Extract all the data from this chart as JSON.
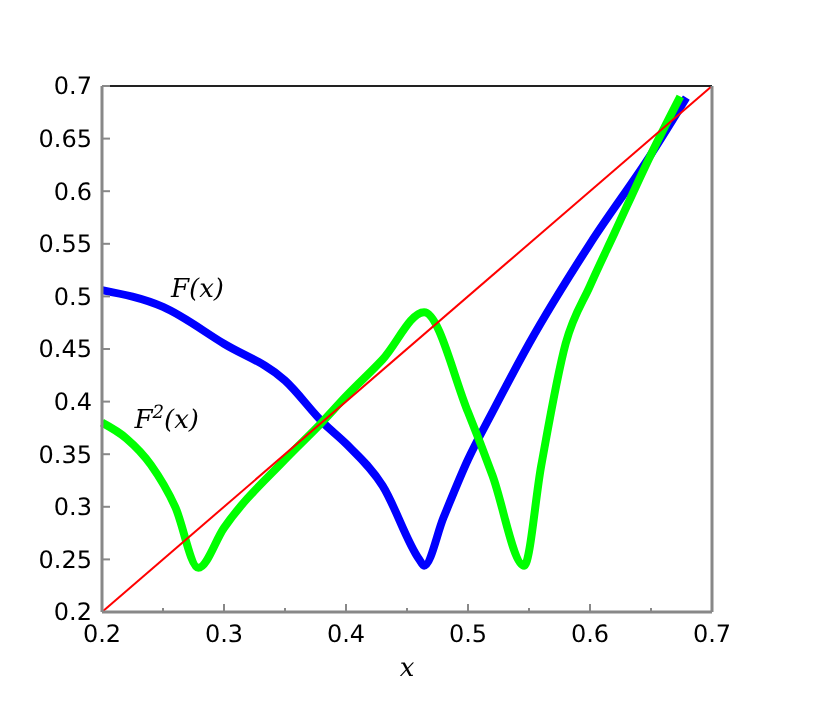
{
  "chart_data": {
    "type": "line",
    "xlabel": "x",
    "xlim": [
      0.2,
      0.7
    ],
    "ylim": [
      0.2,
      0.7
    ],
    "xticks": [
      0.2,
      {
        "value": 0.25,
        "label": null
      },
      0.3,
      {
        "value": 0.35,
        "label": null
      },
      0.4,
      {
        "value": 0.45,
        "label": null
      },
      0.5,
      {
        "value": 0.55,
        "label": null
      },
      0.6,
      {
        "value": 0.65,
        "label": null
      },
      0.7
    ],
    "yticks": [
      0.2,
      0.25,
      0.3,
      0.35,
      0.4,
      0.45,
      0.5,
      0.55,
      0.6,
      0.65,
      0.7
    ],
    "grid": false,
    "marker": "none",
    "line_style": "solid",
    "series": [
      {
        "name": "F(x)",
        "color": "#0000ff",
        "x": [
          0.2,
          0.25,
          0.3,
          0.35,
          0.382,
          0.4,
          0.43,
          0.46,
          0.464,
          0.48,
          0.5,
          0.52,
          0.55,
          0.6,
          0.65,
          0.679
        ],
        "values": [
          0.506,
          0.49,
          0.455,
          0.42,
          0.379,
          0.36,
          0.32,
          0.25,
          0.244,
          0.29,
          0.345,
          0.39,
          0.455,
          0.55,
          0.635,
          0.689
        ]
      },
      {
        "name": "F$^{2}$(x)",
        "color": "#00ff00",
        "x": [
          0.2,
          0.22,
          0.24,
          0.26,
          0.279,
          0.3,
          0.35,
          0.38,
          0.4,
          0.43,
          0.464,
          0.5,
          0.52,
          0.546,
          0.56,
          0.58,
          0.6,
          0.62,
          0.65,
          0.674
        ],
        "values": [
          0.38,
          0.365,
          0.34,
          0.3,
          0.242,
          0.28,
          0.345,
          0.38,
          0.405,
          0.44,
          0.485,
          0.39,
          0.33,
          0.244,
          0.339,
          0.455,
          0.51,
          0.56,
          0.635,
          0.69
        ]
      },
      {
        "color": "#ff0000",
        "x": [
          0.2,
          0.7
        ],
        "values": [
          0.2,
          0.7
        ]
      }
    ]
  }
}
